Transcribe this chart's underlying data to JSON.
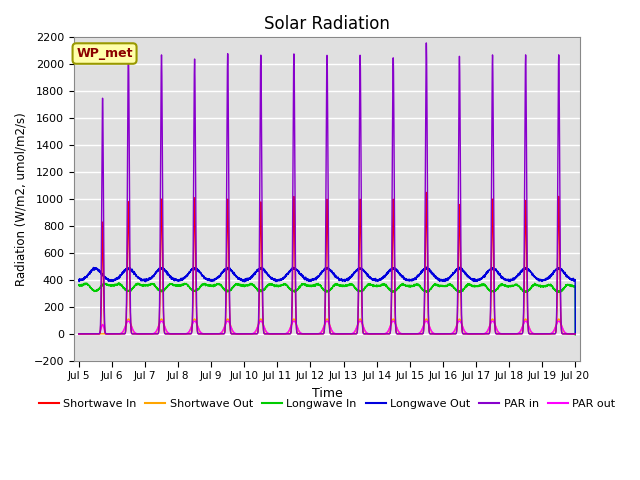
{
  "title": "Solar Radiation",
  "ylabel": "Radiation (W/m2, umol/m2/s)",
  "xlabel": "Time",
  "xlim": [
    4.85,
    20.15
  ],
  "ylim": [
    -200,
    2200
  ],
  "yticks": [
    -200,
    0,
    200,
    400,
    600,
    800,
    1000,
    1200,
    1400,
    1600,
    1800,
    2000,
    2200
  ],
  "xtick_labels": [
    "Jul 5",
    "Jul 6",
    "Jul 7",
    "Jul 8",
    "Jul 9",
    "Jul 10",
    "Jul 11",
    "Jul 12",
    "Jul 13",
    "Jul 14",
    "Jul 15",
    "Jul 16",
    "Jul 17",
    "Jul 18",
    "Jul 19",
    "Jul 20"
  ],
  "xtick_positions": [
    5,
    6,
    7,
    8,
    9,
    10,
    11,
    12,
    13,
    14,
    15,
    16,
    17,
    18,
    19,
    20
  ],
  "station_label": "WP_met",
  "colors": {
    "shortwave_in": "#ff0000",
    "shortwave_out": "#ffa500",
    "longwave_in": "#00cc00",
    "longwave_out": "#0000dd",
    "par_in": "#8800cc",
    "par_out": "#ff00ff",
    "background": "#e0e0e0"
  },
  "legend": [
    {
      "label": "Shortwave In",
      "color": "#ff0000"
    },
    {
      "label": "Shortwave Out",
      "color": "#ffa500"
    },
    {
      "label": "Longwave In",
      "color": "#00cc00"
    },
    {
      "label": "Longwave Out",
      "color": "#0000dd"
    },
    {
      "label": "PAR in",
      "color": "#8800cc"
    },
    {
      "label": "PAR out",
      "color": "#ff00ff"
    }
  ]
}
